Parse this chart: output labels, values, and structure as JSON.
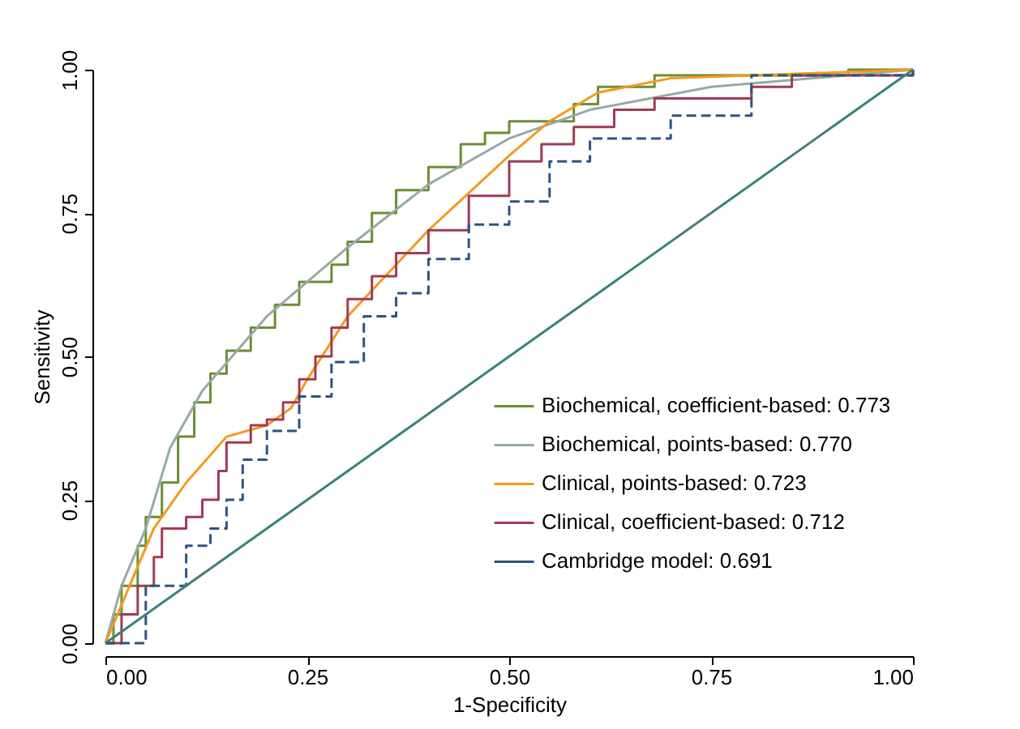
{
  "chart_data": {
    "type": "line",
    "xlabel": "1-Specificity",
    "ylabel": "Sensitivity",
    "xlim": [
      0,
      1
    ],
    "ylim": [
      0,
      1
    ],
    "xticks": [
      {
        "value": 0,
        "label": "0.00"
      },
      {
        "value": 0.25,
        "label": "0.25"
      },
      {
        "value": 0.5,
        "label": "0.50"
      },
      {
        "value": 0.75,
        "label": "0.75"
      },
      {
        "value": 1,
        "label": "1.00"
      }
    ],
    "yticks": [
      {
        "value": 0,
        "label": "0.00"
      },
      {
        "value": 0.25,
        "label": "0.25"
      },
      {
        "value": 0.5,
        "label": "0.50"
      },
      {
        "value": 0.75,
        "label": "0.75"
      },
      {
        "value": 1,
        "label": "1.00"
      }
    ],
    "grid": false,
    "legend": "right",
    "series": [
      {
        "name": "Biochemical, coefficient-based: 0.773",
        "type": "step",
        "color": "#6e8c35",
        "x": [
          0,
          0.01,
          0.02,
          0.04,
          0.05,
          0.07,
          0.09,
          0.11,
          0.13,
          0.15,
          0.18,
          0.21,
          0.24,
          0.28,
          0.3,
          0.33,
          0.36,
          0.4,
          0.44,
          0.47,
          0.5,
          0.58,
          0.61,
          0.68,
          0.92,
          1
        ],
        "values": [
          0,
          0.05,
          0.1,
          0.17,
          0.22,
          0.28,
          0.36,
          0.42,
          0.47,
          0.51,
          0.55,
          0.59,
          0.63,
          0.66,
          0.7,
          0.75,
          0.79,
          0.83,
          0.87,
          0.89,
          0.91,
          0.94,
          0.97,
          0.99,
          1,
          1
        ]
      },
      {
        "name": "Biochemical, points-based: 0.770",
        "type": "line",
        "color": "#96aaa5",
        "x": [
          0,
          0.02,
          0.05,
          0.08,
          0.12,
          0.2,
          0.3,
          0.4,
          0.5,
          0.6,
          0.75,
          1
        ],
        "values": [
          0,
          0.1,
          0.2,
          0.34,
          0.44,
          0.57,
          0.69,
          0.8,
          0.88,
          0.93,
          0.97,
          1
        ]
      },
      {
        "name": "Clinical, points-based: 0.723",
        "type": "line",
        "color": "#f39a1c",
        "x": [
          0,
          0.03,
          0.06,
          0.1,
          0.15,
          0.2,
          0.23,
          0.25,
          0.3,
          0.4,
          0.5,
          0.55,
          0.61,
          0.7,
          0.8,
          1
        ],
        "values": [
          0,
          0.1,
          0.2,
          0.28,
          0.36,
          0.38,
          0.41,
          0.46,
          0.57,
          0.72,
          0.85,
          0.91,
          0.96,
          0.985,
          0.99,
          1
        ]
      },
      {
        "name": "Clinical, coefficient-based: 0.712",
        "type": "step",
        "color": "#a23b52",
        "x": [
          0,
          0.02,
          0.04,
          0.06,
          0.07,
          0.1,
          0.12,
          0.14,
          0.15,
          0.18,
          0.2,
          0.22,
          0.24,
          0.26,
          0.28,
          0.3,
          0.33,
          0.36,
          0.4,
          0.45,
          0.5,
          0.54,
          0.58,
          0.63,
          0.68,
          0.8,
          0.85,
          1
        ],
        "values": [
          0,
          0.05,
          0.1,
          0.15,
          0.2,
          0.22,
          0.25,
          0.3,
          0.35,
          0.38,
          0.39,
          0.42,
          0.46,
          0.5,
          0.55,
          0.6,
          0.64,
          0.68,
          0.72,
          0.78,
          0.84,
          0.87,
          0.9,
          0.93,
          0.95,
          0.97,
          0.99,
          1
        ]
      },
      {
        "name": "Cambridge model: 0.691",
        "type": "step",
        "line_style": "dashed",
        "color": "#2d5480",
        "x": [
          0,
          0.05,
          0.1,
          0.13,
          0.15,
          0.17,
          0.2,
          0.24,
          0.28,
          0.32,
          0.36,
          0.4,
          0.45,
          0.5,
          0.55,
          0.6,
          0.7,
          0.8,
          1
        ],
        "values": [
          0,
          0.1,
          0.17,
          0.2,
          0.25,
          0.32,
          0.37,
          0.43,
          0.49,
          0.57,
          0.61,
          0.67,
          0.73,
          0.77,
          0.84,
          0.88,
          0.92,
          0.99,
          1
        ]
      },
      {
        "type": "line",
        "color": "#3c807a",
        "x": [
          0,
          1
        ],
        "values": [
          0,
          1
        ]
      }
    ]
  }
}
